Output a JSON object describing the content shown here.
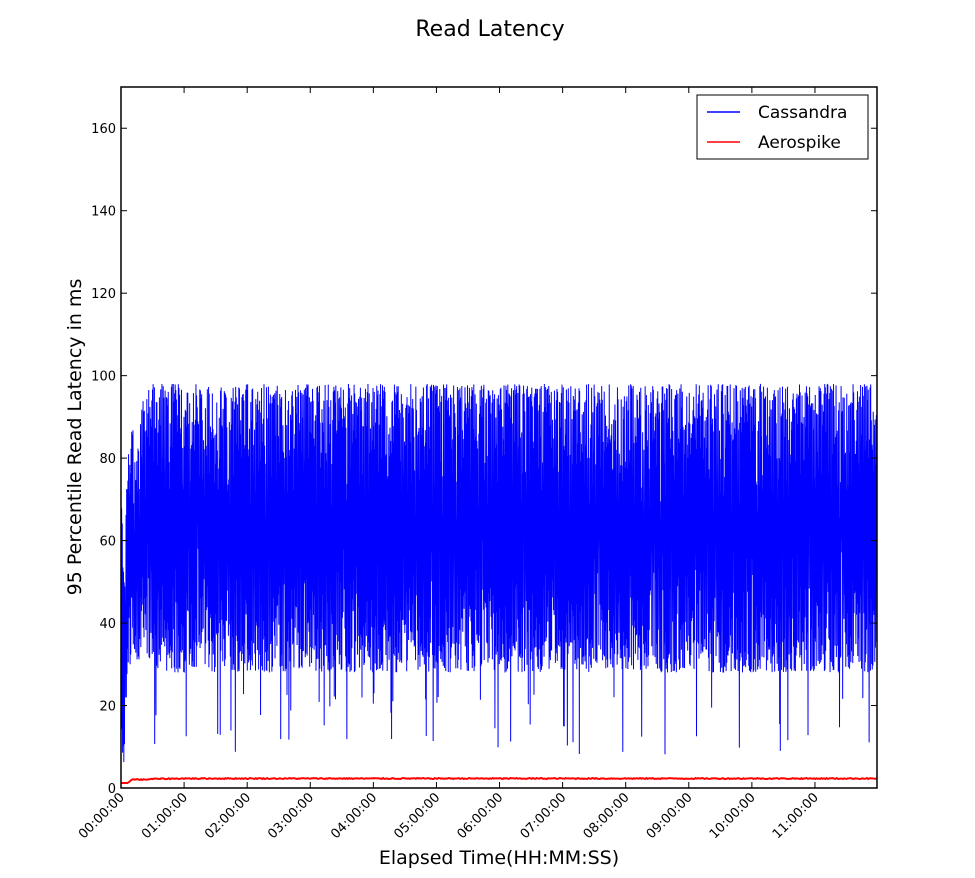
{
  "chart_data": {
    "type": "line",
    "title": "Read Latency",
    "xlabel": "Elapsed Time(HH:MM:SS)",
    "ylabel": "95 Percentile Read Latency in ms",
    "x_unit": "HH:MM:SS",
    "xlim": [
      "00:00:00",
      "11:59:00"
    ],
    "ylim": [
      0,
      170
    ],
    "yticks": [
      0,
      20,
      40,
      60,
      80,
      100,
      120,
      140,
      160
    ],
    "xticks": [
      "00:00:00",
      "01:00:00",
      "02:00:00",
      "03:00:00",
      "04:00:00",
      "05:00:00",
      "06:00:00",
      "07:00:00",
      "08:00:00",
      "09:00:00",
      "10:00:00",
      "11:00:00"
    ],
    "grid": false,
    "legend_position": "top-right",
    "series": [
      {
        "name": "Cassandra",
        "color": "#0000ff",
        "x": [
          "00:00:00",
          "00:02:00",
          "00:04:00",
          "00:06:00",
          "00:08:00",
          "00:10:00",
          "00:12:00",
          "00:15:00",
          "00:18:00",
          "00:20:00",
          "00:25:00",
          "00:30:00",
          "00:40:00",
          "00:50:00",
          "01:00:00",
          "01:30:00",
          "02:00:00",
          "03:00:00",
          "04:00:00",
          "05:00:00",
          "06:00:00",
          "07:00:00",
          "08:00:00",
          "09:00:00",
          "10:00:00",
          "11:00:00",
          "11:59:00"
        ],
        "max": [
          98,
          52,
          66,
          80,
          86,
          90,
          86,
          84,
          88,
          94,
          96,
          98,
          98,
          98,
          98,
          98,
          98,
          98,
          98,
          98,
          98,
          98,
          98,
          98,
          98,
          98,
          98
        ],
        "min": [
          4,
          4,
          10,
          28,
          30,
          30,
          30,
          30,
          30,
          30,
          30,
          30,
          28,
          28,
          28,
          28,
          28,
          28,
          28,
          28,
          28,
          28,
          28,
          28,
          28,
          28,
          28
        ],
        "occasional_min": 8
      },
      {
        "name": "Aerospike",
        "color": "#ff0000",
        "x": [
          "00:00:00",
          "00:03:00",
          "00:06:00",
          "00:08:00",
          "00:10:00",
          "00:15:00",
          "00:20:00",
          "00:30:00",
          "01:00:00",
          "03:00:00",
          "06:00:00",
          "09:00:00",
          "11:59:00"
        ],
        "values": [
          1.2,
          1.2,
          1.2,
          1.5,
          2.0,
          2.1,
          2.0,
          2.2,
          2.3,
          2.3,
          2.3,
          2.3,
          2.3
        ]
      }
    ]
  }
}
